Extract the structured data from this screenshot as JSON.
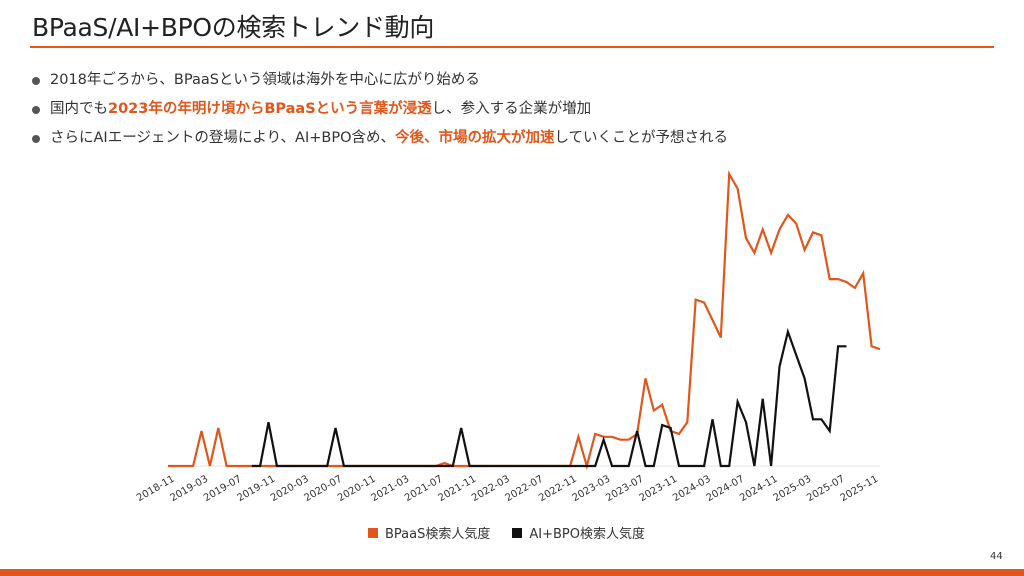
{
  "slide": {
    "title": "BPaaS/AI+BPOの検索トレンド動向",
    "page_number": "44",
    "accent_color": "#e0561b"
  },
  "bullets": [
    {
      "parts": [
        {
          "text": "2018年ごろから、BPaaSという領域は海外を中心に広がり始める",
          "emphasis": false
        }
      ]
    },
    {
      "parts": [
        {
          "text": "国内でも",
          "emphasis": false
        },
        {
          "text": "2023年の年明け頃からBPaaSという言葉が浸透",
          "emphasis": true
        },
        {
          "text": "し、参入する企業が増加",
          "emphasis": false
        }
      ]
    },
    {
      "parts": [
        {
          "text": "さらにAIエージェントの登場により、AI+BPO含め、",
          "emphasis": false
        },
        {
          "text": "今後、市場の拡大が加速",
          "emphasis": true
        },
        {
          "text": "していくことが予想される",
          "emphasis": false
        }
      ]
    }
  ],
  "chart_data": {
    "type": "line",
    "title": "",
    "xlabel": "",
    "ylabel": "",
    "ylim": [
      0,
      100
    ],
    "x_start": "2018-11",
    "x_end": "2025-12",
    "tick_labels": [
      "2018-11",
      "2019-03",
      "2019-07",
      "2019-11",
      "2020-03",
      "2020-07",
      "2020-11",
      "2021-03",
      "2021-07",
      "2021-11",
      "2022-03",
      "2022-07",
      "2022-11",
      "2023-03",
      "2023-07",
      "2023-11",
      "2024-03",
      "2024-07",
      "2024-11",
      "2025-03",
      "2025-07",
      "2025-11"
    ],
    "legend_position": "bottom",
    "series": [
      {
        "name": "BPaaS検索人気度",
        "color": "#e0561b",
        "points": [
          [
            "2018-11",
            0
          ],
          [
            "2019-02",
            0
          ],
          [
            "2019-03",
            12
          ],
          [
            "2019-04",
            0
          ],
          [
            "2019-05",
            13
          ],
          [
            "2019-06",
            0
          ],
          [
            "2021-07",
            0
          ],
          [
            "2021-08",
            1
          ],
          [
            "2021-09",
            0
          ],
          [
            "2022-11",
            0
          ],
          [
            "2022-12",
            10
          ],
          [
            "2023-01",
            0
          ],
          [
            "2023-02",
            11
          ],
          [
            "2023-03",
            10
          ],
          [
            "2023-04",
            10
          ],
          [
            "2023-05",
            9
          ],
          [
            "2023-06",
            9
          ],
          [
            "2023-07",
            11
          ],
          [
            "2023-08",
            30
          ],
          [
            "2023-09",
            19
          ],
          [
            "2023-10",
            21
          ],
          [
            "2023-11",
            12
          ],
          [
            "2023-12",
            11
          ],
          [
            "2024-01",
            15
          ],
          [
            "2024-02",
            57
          ],
          [
            "2024-03",
            56
          ],
          [
            "2024-04",
            50
          ],
          [
            "2024-05",
            44
          ],
          [
            "2024-06",
            100
          ],
          [
            "2024-07",
            95
          ],
          [
            "2024-08",
            78
          ],
          [
            "2024-09",
            73
          ],
          [
            "2024-10",
            81
          ],
          [
            "2024-11",
            73
          ],
          [
            "2024-12",
            81
          ],
          [
            "2025-01",
            86
          ],
          [
            "2025-02",
            83
          ],
          [
            "2025-03",
            74
          ],
          [
            "2025-04",
            80
          ],
          [
            "2025-05",
            79
          ],
          [
            "2025-06",
            64
          ],
          [
            "2025-07",
            64
          ],
          [
            "2025-08",
            63
          ],
          [
            "2025-09",
            61
          ],
          [
            "2025-10",
            66
          ],
          [
            "2025-11",
            41
          ],
          [
            "2025-12",
            40
          ]
        ]
      },
      {
        "name": "AI+BPO検索人気度",
        "color": "#111111",
        "points": [
          [
            "2019-09",
            0
          ],
          [
            "2019-10",
            0
          ],
          [
            "2019-11",
            15
          ],
          [
            "2019-12",
            0
          ],
          [
            "2020-06",
            0
          ],
          [
            "2020-07",
            13
          ],
          [
            "2020-08",
            0
          ],
          [
            "2021-09",
            0
          ],
          [
            "2021-10",
            13
          ],
          [
            "2021-11",
            0
          ],
          [
            "2023-02",
            0
          ],
          [
            "2023-03",
            9
          ],
          [
            "2023-04",
            0
          ],
          [
            "2023-05",
            0
          ],
          [
            "2023-06",
            0
          ],
          [
            "2023-07",
            12
          ],
          [
            "2023-08",
            0
          ],
          [
            "2023-09",
            0
          ],
          [
            "2023-10",
            14
          ],
          [
            "2023-11",
            13
          ],
          [
            "2023-12",
            0
          ],
          [
            "2024-01",
            0
          ],
          [
            "2024-02",
            0
          ],
          [
            "2024-03",
            0
          ],
          [
            "2024-04",
            16
          ],
          [
            "2024-05",
            0
          ],
          [
            "2024-06",
            0
          ],
          [
            "2024-07",
            22
          ],
          [
            "2024-08",
            15
          ],
          [
            "2024-09",
            0
          ],
          [
            "2024-10",
            23
          ],
          [
            "2024-11",
            0
          ],
          [
            "2024-12",
            34
          ],
          [
            "2025-01",
            46
          ],
          [
            "2025-02",
            38
          ],
          [
            "2025-03",
            30
          ],
          [
            "2025-04",
            16
          ],
          [
            "2025-05",
            16
          ],
          [
            "2025-06",
            12
          ],
          [
            "2025-07",
            41
          ],
          [
            "2025-08",
            41
          ]
        ]
      }
    ]
  }
}
